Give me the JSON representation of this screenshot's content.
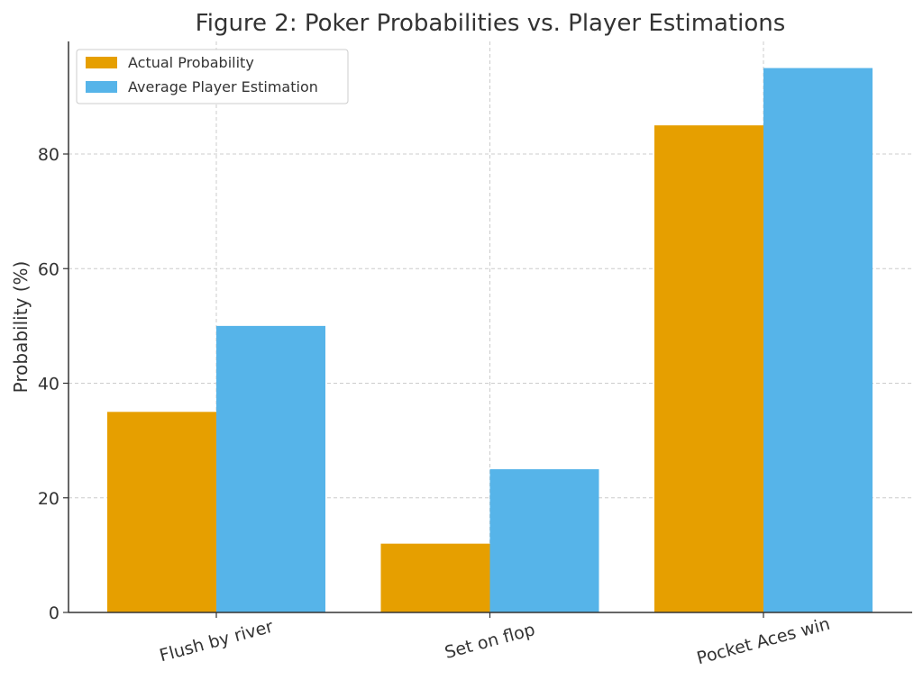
{
  "chart_data": {
    "type": "bar",
    "title": "Figure 2: Poker Probabilities vs. Player Estimations",
    "xlabel": "",
    "ylabel": "Probability (%)",
    "categories": [
      "Flush by river",
      "Set on flop",
      "Pocket Aces win"
    ],
    "series": [
      {
        "name": "Actual Probability",
        "values": [
          35,
          12,
          85
        ],
        "color": "#E69F00"
      },
      {
        "name": "Average Player Estimation",
        "values": [
          50,
          25,
          95
        ],
        "color": "#56B4E9"
      }
    ],
    "ylim": [
      0,
      100
    ],
    "yticks": [
      0,
      20,
      40,
      60,
      80
    ],
    "grid": true,
    "legend": "top-left"
  }
}
